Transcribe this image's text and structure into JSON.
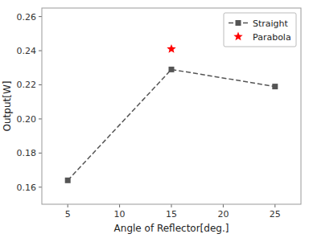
{
  "chart_data": {
    "type": "line",
    "xlabel": "Angle of Reflector[deg.]",
    "ylabel": "Output[W]",
    "series": [
      {
        "name": "Straight",
        "color": "#555555",
        "x": [
          5,
          15,
          25
        ],
        "values": [
          0.164,
          0.229,
          0.219
        ],
        "marker": "square",
        "line_style": "dashed"
      },
      {
        "name": "Parabola",
        "color": "#ff0000",
        "type": "scatter",
        "x": [
          15
        ],
        "values": [
          0.241
        ],
        "marker": "star"
      }
    ],
    "xlim": [
      2.5,
      27.5
    ],
    "ylim": [
      0.15,
      0.265
    ],
    "xticks": [
      5,
      10,
      15,
      20,
      25
    ],
    "yticks": [
      0.16,
      0.18,
      {
        "value": 0.2,
        "label": "0.20"
      },
      0.22,
      0.24,
      0.26
    ],
    "grid": false,
    "legend": "upper right"
  }
}
